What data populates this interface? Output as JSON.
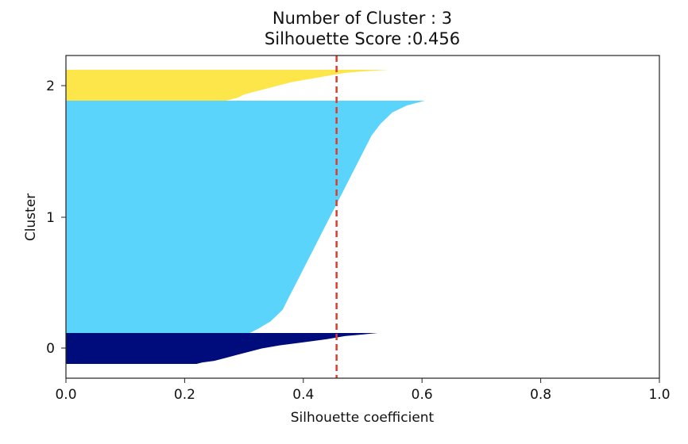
{
  "chart_data": {
    "type": "area",
    "title_line1": "Number of Cluster : 3",
    "title_line2": "Silhouette Score :0.456",
    "xlabel": "Silhouette coefficient",
    "ylabel": "Cluster",
    "xlim": [
      0,
      1
    ],
    "x_ticks": [
      "0.0",
      "0.2",
      "0.4",
      "0.6",
      "0.8",
      "1.0"
    ],
    "y_ticks": [
      "0",
      "1",
      "2"
    ],
    "grid": false,
    "silhouette_score": 0.456,
    "reference_line": {
      "x": 0.456,
      "color": "#e03b2e",
      "style": "dashed"
    },
    "clusters": [
      {
        "label": "0",
        "color": "#000c7b",
        "profile": [
          [
            0.0,
            0.525
          ],
          [
            0.05,
            0.5
          ],
          [
            0.1,
            0.47
          ],
          [
            0.2,
            0.44
          ],
          [
            0.3,
            0.4
          ],
          [
            0.4,
            0.36
          ],
          [
            0.5,
            0.33
          ],
          [
            0.6,
            0.31
          ],
          [
            0.7,
            0.29
          ],
          [
            0.8,
            0.27
          ],
          [
            0.9,
            0.25
          ],
          [
            0.95,
            0.23
          ],
          [
            1.0,
            0.22
          ]
        ]
      },
      {
        "label": "1",
        "color": "#5bd4fb",
        "profile": [
          [
            0.0,
            0.605
          ],
          [
            0.02,
            0.575
          ],
          [
            0.05,
            0.55
          ],
          [
            0.1,
            0.53
          ],
          [
            0.15,
            0.515
          ],
          [
            0.2,
            0.505
          ],
          [
            0.25,
            0.495
          ],
          [
            0.3,
            0.485
          ],
          [
            0.35,
            0.475
          ],
          [
            0.4,
            0.465
          ],
          [
            0.45,
            0.455
          ],
          [
            0.5,
            0.445
          ],
          [
            0.55,
            0.435
          ],
          [
            0.6,
            0.425
          ],
          [
            0.65,
            0.415
          ],
          [
            0.7,
            0.405
          ],
          [
            0.75,
            0.395
          ],
          [
            0.8,
            0.385
          ],
          [
            0.85,
            0.375
          ],
          [
            0.9,
            0.365
          ],
          [
            0.95,
            0.345
          ],
          [
            0.98,
            0.325
          ],
          [
            1.0,
            0.31
          ]
        ]
      },
      {
        "label": "2",
        "color": "#fde64a",
        "profile": [
          [
            0.0,
            0.545
          ],
          [
            0.05,
            0.5
          ],
          [
            0.1,
            0.47
          ],
          [
            0.2,
            0.44
          ],
          [
            0.3,
            0.41
          ],
          [
            0.4,
            0.38
          ],
          [
            0.5,
            0.36
          ],
          [
            0.6,
            0.34
          ],
          [
            0.7,
            0.32
          ],
          [
            0.8,
            0.3
          ],
          [
            0.9,
            0.29
          ],
          [
            0.95,
            0.28
          ],
          [
            1.0,
            0.27
          ]
        ]
      }
    ]
  }
}
